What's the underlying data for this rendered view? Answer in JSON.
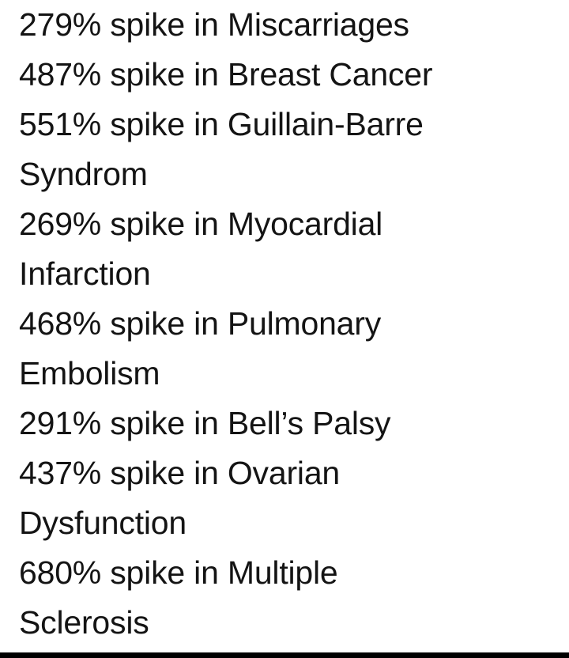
{
  "entries": [
    {
      "lines": [
        "279% spike in Miscarriages"
      ]
    },
    {
      "lines": [
        "487% spike in Breast Cancer"
      ]
    },
    {
      "lines": [
        "551% spike in Guillain-Barre",
        "Syndrom"
      ]
    },
    {
      "lines": [
        "269% spike in Myocardial",
        "Infarction"
      ]
    },
    {
      "lines": [
        "468% spike in Pulmonary",
        "Embolism"
      ]
    },
    {
      "lines": [
        "291% spike in Bell’s Palsy"
      ]
    },
    {
      "lines": [
        "437% spike in Ovarian",
        "Dysfunction"
      ]
    },
    {
      "lines": [
        "680% spike in Multiple",
        "Sclerosis"
      ]
    }
  ],
  "colors": {
    "text": "#141414",
    "background": "#ffffff",
    "bottom_bar": "#000000"
  }
}
